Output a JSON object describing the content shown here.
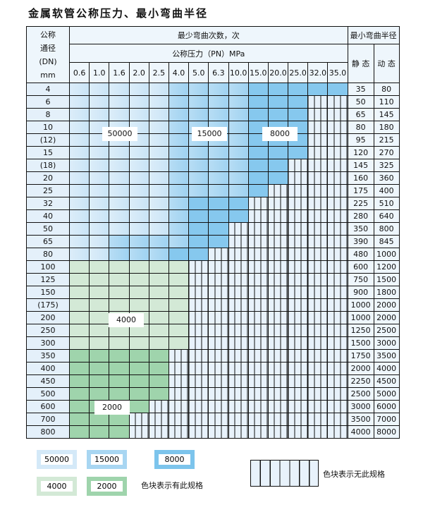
{
  "title": "金属软管公称压力、最小弯曲半径",
  "header": {
    "dn_label": [
      "公称",
      "通径",
      "(DN)",
      "mm"
    ],
    "cycles_label": "最少弯曲次数，次",
    "pressure_label": "公称压力（PN）MPa",
    "radius_label": "最小弯曲半径",
    "static_label": "静 态",
    "dynamic_label": "动 态",
    "pressures": [
      "0.6",
      "1.0",
      "1.6",
      "2.0",
      "2.5",
      "4.0",
      "5.0",
      "6.3",
      "10.0",
      "15.0",
      "20.0",
      "25.0",
      "32.0",
      "35.0"
    ]
  },
  "rating_codes": {
    "a": "50000",
    "b": "15000",
    "c": "8000",
    "d": "4000",
    "e": "2000",
    "x": "无此规格"
  },
  "colors": {
    "a": "#d4e9f8",
    "b": "#a8d6f2",
    "c": "#86c8ee",
    "d": "#d3e9d6",
    "e": "#9fd4ac"
  },
  "rows": [
    {
      "dn": "4",
      "static": "35",
      "dynamic": "80",
      "cells": "aaaaabbbbccccc"
    },
    {
      "dn": "6",
      "static": "50",
      "dynamic": "110",
      "cells": "aaaaabbbbcccxx"
    },
    {
      "dn": "8",
      "static": "65",
      "dynamic": "145",
      "cells": "aaaaabbbbcccxx"
    },
    {
      "dn": "10",
      "static": "80",
      "dynamic": "180",
      "cells": "aaaaabbbbcccxx"
    },
    {
      "dn": "(12)",
      "static": "95",
      "dynamic": "215",
      "cells": "aaaaabbbbcccxx"
    },
    {
      "dn": "15",
      "static": "120",
      "dynamic": "270",
      "cells": "aaaaabbbbcccxx"
    },
    {
      "dn": "(18)",
      "static": "145",
      "dynamic": "325",
      "cells": "aaaaabbbbccxxx"
    },
    {
      "dn": "20",
      "static": "160",
      "dynamic": "360",
      "cells": "aaaaabbbbccxxx"
    },
    {
      "dn": "25",
      "static": "175",
      "dynamic": "400",
      "cells": "aaaaabbbbcxxxx"
    },
    {
      "dn": "32",
      "static": "225",
      "dynamic": "510",
      "cells": "aaaaabcccxxxxx"
    },
    {
      "dn": "40",
      "static": "280",
      "dynamic": "640",
      "cells": "aaaaabcccxxxxx"
    },
    {
      "dn": "50",
      "static": "350",
      "dynamic": "800",
      "cells": "aaaaabccxxxxxx"
    },
    {
      "dn": "65",
      "static": "390",
      "dynamic": "845",
      "cells": "aabbbbccxxxxxx"
    },
    {
      "dn": "80",
      "static": "480",
      "dynamic": "1000",
      "cells": "aabbbccxxxxxxx"
    },
    {
      "dn": "100",
      "static": "600",
      "dynamic": "1200",
      "cells": "ddddddxxxxxxxx"
    },
    {
      "dn": "125",
      "static": "750",
      "dynamic": "1500",
      "cells": "ddddddxxxxxxxx"
    },
    {
      "dn": "150",
      "static": "900",
      "dynamic": "1800",
      "cells": "ddddddxxxxxxxx"
    },
    {
      "dn": "(175)",
      "static": "1000",
      "dynamic": "2000",
      "cells": "ddddddxxxxxxxx"
    },
    {
      "dn": "200",
      "static": "1000",
      "dynamic": "2000",
      "cells": "ddddddxxxxxxxx"
    },
    {
      "dn": "250",
      "static": "1250",
      "dynamic": "2500",
      "cells": "ddddddxxxxxxxx"
    },
    {
      "dn": "300",
      "static": "1500",
      "dynamic": "3000",
      "cells": "ddddddxxxxxxxx"
    },
    {
      "dn": "350",
      "static": "1750",
      "dynamic": "3500",
      "cells": "eeeeexxxxxxxxx"
    },
    {
      "dn": "400",
      "static": "2000",
      "dynamic": "4000",
      "cells": "eeeeexxxxxxxxx"
    },
    {
      "dn": "450",
      "static": "2250",
      "dynamic": "4500",
      "cells": "eeeeexxxxxxxxx"
    },
    {
      "dn": "500",
      "static": "2500",
      "dynamic": "5000",
      "cells": "eeeeexxxxxxxxx"
    },
    {
      "dn": "600",
      "static": "3000",
      "dynamic": "6000",
      "cells": "eeeexxxxxxxxxx"
    },
    {
      "dn": "700",
      "static": "3500",
      "dynamic": "7000",
      "cells": "eeexxxxxxxxxxx"
    },
    {
      "dn": "800",
      "static": "4000",
      "dynamic": "8000",
      "cells": "eeexxxxxxxxxxx"
    }
  ],
  "zone_labels": [
    "50000",
    "15000",
    "8000",
    "4000",
    "2000"
  ],
  "legend": {
    "items": [
      "50000",
      "15000",
      "8000",
      "4000",
      "2000"
    ],
    "has_spec_text": "色块表示有此规格",
    "no_spec_text": "色块表示无此规格"
  }
}
